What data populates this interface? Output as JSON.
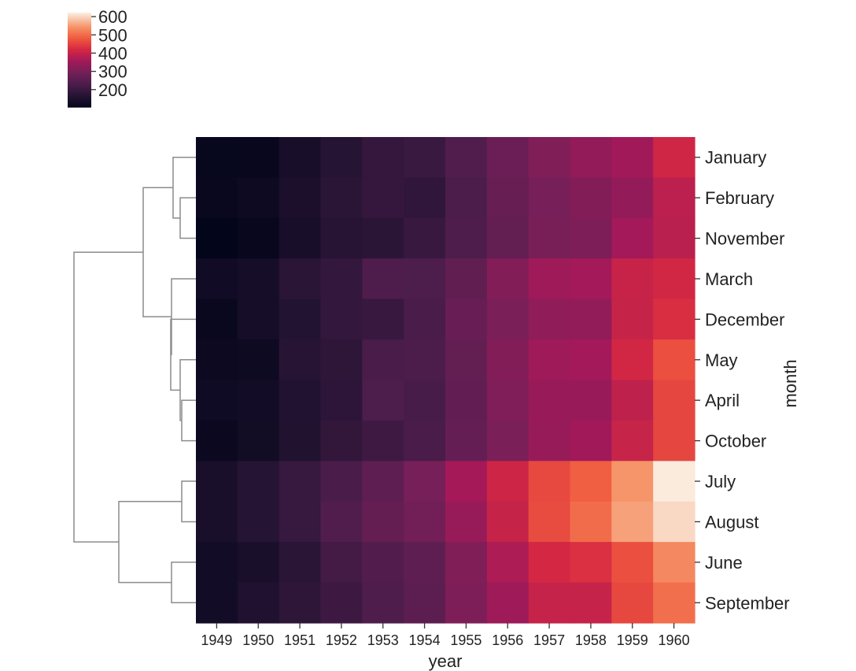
{
  "chart_data": {
    "type": "heatmap",
    "title": "",
    "xlabel": "year",
    "ylabel": "month",
    "x": [
      "1949",
      "1950",
      "1951",
      "1952",
      "1953",
      "1954",
      "1955",
      "1956",
      "1957",
      "1958",
      "1959",
      "1960"
    ],
    "y": [
      "January",
      "February",
      "November",
      "March",
      "December",
      "May",
      "April",
      "October",
      "July",
      "August",
      "June",
      "September"
    ],
    "values": [
      [
        112,
        115,
        145,
        171,
        196,
        204,
        242,
        284,
        315,
        340,
        360,
        417
      ],
      [
        118,
        126,
        150,
        180,
        196,
        188,
        233,
        277,
        301,
        318,
        342,
        391
      ],
      [
        104,
        114,
        146,
        172,
        180,
        203,
        237,
        271,
        305,
        310,
        362,
        390
      ],
      [
        132,
        141,
        178,
        193,
        236,
        235,
        267,
        317,
        356,
        362,
        406,
        419
      ],
      [
        118,
        140,
        166,
        194,
        201,
        229,
        278,
        306,
        336,
        337,
        405,
        432
      ],
      [
        121,
        125,
        172,
        183,
        229,
        234,
        270,
        318,
        355,
        363,
        420,
        472
      ],
      [
        129,
        135,
        163,
        181,
        235,
        227,
        269,
        313,
        348,
        348,
        396,
        461
      ],
      [
        119,
        133,
        162,
        191,
        211,
        229,
        274,
        306,
        347,
        359,
        407,
        461
      ],
      [
        148,
        170,
        199,
        230,
        264,
        302,
        364,
        413,
        465,
        491,
        548,
        622
      ],
      [
        148,
        170,
        199,
        242,
        272,
        293,
        347,
        405,
        467,
        505,
        559,
        606
      ],
      [
        135,
        149,
        178,
        218,
        243,
        264,
        315,
        374,
        422,
        435,
        472,
        535
      ],
      [
        136,
        158,
        184,
        209,
        237,
        259,
        312,
        355,
        404,
        404,
        463,
        508
      ]
    ],
    "colorbar": {
      "ticks": [
        200,
        300,
        400,
        500,
        600
      ],
      "min": 104,
      "max": 622
    },
    "row_dendrogram": true,
    "grid": false
  }
}
